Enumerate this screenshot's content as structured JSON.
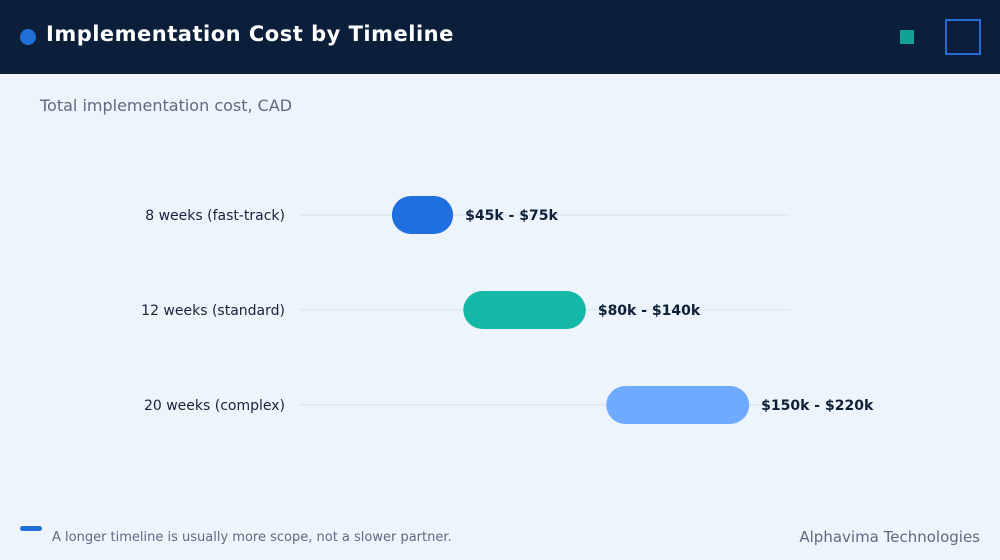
{
  "header": {
    "title": "Implementation Cost by Timeline",
    "accent_color": "#1f6fd6",
    "square_color": "#14a095",
    "frame_icon": "square-outline-icon"
  },
  "chart_data": {
    "type": "bar",
    "subtype": "floating-range",
    "title": "Implementation Cost by Timeline",
    "subtitle": "Total implementation cost, CAD",
    "xlabel": "",
    "ylabel": "",
    "unit": "k CAD",
    "xlim": [
      0,
      240
    ],
    "grid": false,
    "legend": "none",
    "categories": [
      "8 weeks (fast-track)",
      "12 weeks (standard)",
      "20 weeks (complex)"
    ],
    "ranges": [
      {
        "category": "8 weeks (fast-track)",
        "low": 45,
        "high": 75,
        "label": "$45k - $75k",
        "color": "#1f6fe0"
      },
      {
        "category": "12 weeks (standard)",
        "low": 80,
        "high": 140,
        "label": "$80k - $140k",
        "color": "#14b8a6"
      },
      {
        "category": "20 weeks (complex)",
        "low": 150,
        "high": 220,
        "label": "$150k - $220k",
        "color": "#6eaaff"
      }
    ]
  },
  "footer": {
    "note": "A longer timeline is usually more scope, not a slower partner.",
    "brand": "Alphavima Technologies",
    "mark_color": "#1f6fd6"
  }
}
